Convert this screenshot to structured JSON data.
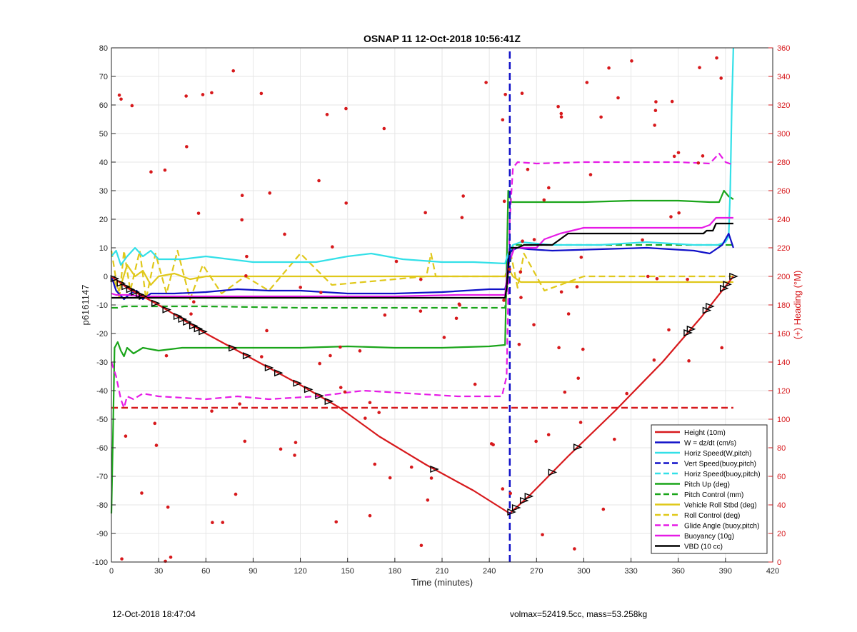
{
  "colors": {
    "height": "#d7191c",
    "w": "#1010c8",
    "horiz": "#33e0e8",
    "vert": "#1010c8",
    "pitch": "#1aa51a",
    "roll": "#e0c81a",
    "glide": "#e61ae6",
    "buoy": "#e61ae6",
    "vbd": "#000000",
    "heading": "#d7191c",
    "grid": "#e6e6e6"
  },
  "footer": {
    "left": "12-Oct-2018 18:47:04",
    "right": "volmax=52419.5cc, mass=53.258kg"
  },
  "chart_data": {
    "type": "line",
    "title": "OSNAP 11 12-Oct-2018 10:56:41Z",
    "xlabel": "Time (minutes)",
    "ylabel": "p6161147",
    "y2label": "(+) Heading (°M)",
    "xlim": [
      0,
      420
    ],
    "ylim": [
      -100,
      80
    ],
    "y2lim": [
      0,
      360
    ],
    "xticks": [
      0,
      30,
      60,
      90,
      120,
      150,
      180,
      210,
      240,
      270,
      300,
      330,
      360,
      390,
      420
    ],
    "yticks": [
      -100,
      -90,
      -80,
      -70,
      -60,
      -50,
      -40,
      -30,
      -20,
      -10,
      0,
      10,
      20,
      30,
      40,
      50,
      60,
      70,
      80
    ],
    "y2ticks": [
      0,
      20,
      40,
      60,
      80,
      100,
      120,
      140,
      160,
      180,
      200,
      220,
      240,
      260,
      280,
      300,
      320,
      340,
      360
    ],
    "grid": true,
    "legend_position": "bottom-right",
    "series": [
      {
        "key": "height",
        "name": "Height (10m)",
        "style": "solid",
        "x": [
          0,
          10,
          30,
          60,
          90,
          120,
          145,
          170,
          200,
          230,
          253,
          265,
          290,
          320,
          350,
          375,
          395
        ],
        "y": [
          0,
          -4,
          -10,
          -20,
          -29,
          -38,
          -46,
          -56,
          -66,
          -75,
          -83,
          -77,
          -63,
          -47,
          -30,
          -14,
          0
        ]
      },
      {
        "key": "w",
        "name": "W = dz/dt (cm/s)",
        "style": "solid",
        "x": [
          0,
          3,
          8,
          12,
          16,
          20,
          25,
          40,
          60,
          80,
          100,
          120,
          150,
          180,
          210,
          240,
          250,
          251,
          252,
          254,
          258,
          265,
          280,
          310,
          340,
          370,
          380,
          388,
          392,
          395
        ],
        "y": [
          0,
          -5,
          -8,
          -6,
          -5,
          -8,
          -6,
          -6,
          -5.5,
          -4.5,
          -5,
          -5,
          -6,
          -6,
          -5.5,
          -4.5,
          -4.5,
          -2,
          6,
          9,
          10,
          9.5,
          9,
          9.5,
          10,
          9,
          8,
          11,
          15,
          10
        ]
      },
      {
        "key": "horiz",
        "name": "Horiz Speed(W,pitch)",
        "style": "solid",
        "x": [
          0,
          3,
          6,
          10,
          15,
          20,
          25,
          30,
          45,
          60,
          75,
          90,
          110,
          130,
          150,
          165,
          185,
          210,
          230,
          250,
          252,
          255,
          260,
          280,
          310,
          340,
          370,
          385,
          390,
          392,
          393,
          394,
          395
        ],
        "y": [
          7,
          9,
          4,
          7,
          10,
          7,
          9,
          6,
          6,
          7,
          6,
          5,
          5,
          5,
          7,
          8,
          6,
          5,
          5,
          4.5,
          8,
          11,
          12,
          11,
          11,
          12,
          11,
          11,
          12,
          14,
          30,
          60,
          80
        ]
      },
      {
        "key": "vert",
        "name": "Vert Speed(buoy,pitch)",
        "style": "dashed",
        "x": [
          253,
          253.01
        ],
        "y": [
          -100,
          80
        ]
      },
      {
        "key": "horiz",
        "name": "Horiz Speed(buoy,pitch)",
        "style": "dashed",
        "x": [],
        "y": []
      },
      {
        "key": "pitch",
        "name": "Pitch Up (deg)",
        "style": "solid",
        "x": [
          0,
          1,
          2,
          4,
          6,
          8,
          10,
          14,
          20,
          30,
          45,
          60,
          90,
          120,
          150,
          180,
          210,
          240,
          250,
          252,
          254,
          258,
          270,
          300,
          330,
          360,
          380,
          386,
          389,
          392,
          395
        ],
        "y": [
          -83,
          -55,
          -25,
          -23,
          -26,
          -28,
          -25,
          -27,
          -25,
          -26,
          -25,
          -25,
          -25,
          -25,
          -24.5,
          -25,
          -25,
          -24.5,
          -24,
          30,
          26,
          26,
          26,
          26,
          26.5,
          26.5,
          26,
          26,
          30,
          28,
          27
        ]
      },
      {
        "key": "pitch",
        "name": "Pitch Control (mm)",
        "style": "dashed",
        "x": [
          0,
          4,
          8,
          60,
          120,
          180,
          250,
          252,
          255,
          300,
          350,
          395
        ],
        "y": [
          -11,
          -11,
          -10.5,
          -10.5,
          -11,
          -11,
          -11,
          0,
          11,
          11,
          11,
          11
        ]
      },
      {
        "key": "roll",
        "name": "Vehicle Roll Stbd (deg)",
        "style": "solid",
        "x": [
          0,
          5,
          10,
          15,
          20,
          25,
          30,
          40,
          50,
          60,
          80,
          100,
          130,
          160,
          190,
          220,
          250,
          252,
          255,
          260,
          280,
          320,
          360,
          380,
          395
        ],
        "y": [
          0,
          -5,
          4,
          0,
          2,
          -3,
          0,
          1,
          -1,
          0,
          0,
          0,
          0,
          0,
          0,
          0,
          0,
          3,
          0,
          -2,
          -2,
          -2,
          -2,
          -2,
          -2
        ]
      },
      {
        "key": "roll",
        "name": "Roll Control (deg)",
        "style": "dashed",
        "x": [
          0,
          5,
          8,
          12,
          18,
          22,
          28,
          35,
          42,
          50,
          58,
          70,
          85,
          100,
          120,
          140,
          200,
          203,
          206,
          250,
          254,
          258,
          262,
          270,
          275,
          300,
          340,
          380,
          395
        ],
        "y": [
          9,
          -8,
          9,
          -5,
          9,
          -8,
          8,
          -6,
          9,
          -8,
          4,
          -6,
          0,
          -5,
          8,
          -3,
          0,
          8,
          0,
          0,
          7,
          -4,
          8,
          0,
          -5,
          0,
          0,
          0,
          0
        ]
      },
      {
        "key": "glide",
        "name": "Glide Angle (buoy,pitch)",
        "style": "dashed",
        "x": [
          0,
          3,
          6,
          8,
          10,
          14,
          20,
          30,
          60,
          80,
          100,
          130,
          160,
          190,
          220,
          248,
          251,
          253,
          255,
          258,
          270,
          300,
          330,
          360,
          380,
          386,
          390,
          395
        ],
        "y": [
          -30,
          -35,
          -43,
          -46,
          -42,
          -43,
          -41,
          -42,
          -43,
          -42,
          -43,
          -42,
          -40,
          -41,
          -42,
          -42,
          -35,
          20,
          38,
          40,
          39.5,
          40,
          40,
          40,
          39.5,
          43,
          40,
          39
        ]
      },
      {
        "key": "buoy",
        "name": "Buoyancy (10g)",
        "style": "solid",
        "x": [
          0,
          3,
          10,
          20,
          60,
          120,
          180,
          220,
          250,
          252,
          256,
          270,
          275,
          285,
          300,
          340,
          375,
          380,
          384,
          395
        ],
        "y": [
          -6,
          -6.5,
          -6.5,
          -7,
          -7,
          -7,
          -7,
          -6.5,
          -6.5,
          4,
          10,
          10,
          13,
          15,
          17,
          17,
          17,
          18,
          20.5,
          20.5
        ]
      },
      {
        "key": "vbd",
        "name": "VBD (10 cc)",
        "style": "solid",
        "x": [
          0,
          250,
          251,
          253,
          258,
          262,
          268,
          280,
          285,
          290,
          300,
          340,
          376,
          378,
          382,
          384,
          395
        ],
        "y": [
          -7.5,
          -7.5,
          -4,
          10,
          10,
          11,
          11,
          11,
          13,
          15,
          15,
          15,
          15,
          16,
          16,
          18.5,
          18.5
        ]
      }
    ],
    "heading_series": {
      "name": "(+) Heading (°M)",
      "style": "dashed",
      "x": [
        0,
        395
      ],
      "y": [
        108,
        108
      ]
    }
  }
}
